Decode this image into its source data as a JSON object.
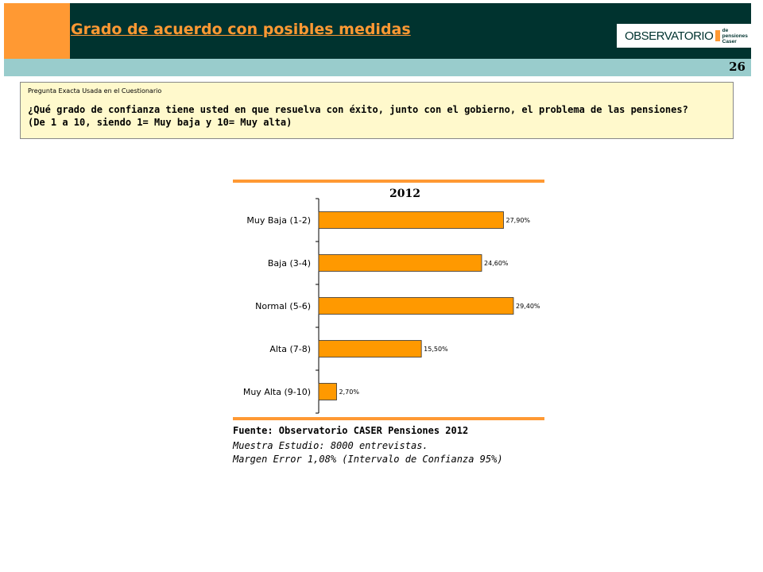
{
  "header": {
    "title": "Grado de acuerdo con posibles medidas",
    "page_number": "26",
    "logo": {
      "main": "OBSERVATORIO",
      "sub1": "de pensiones",
      "sub2": "Caser"
    }
  },
  "question": {
    "caption": "Pregunta Exacta Usada en el Cuestionario",
    "text_line1": "¿Qué grado de confianza tiene usted en que resuelva con éxito, junto con el gobierno, el problema de las pensiones?",
    "text_line2": "(De 1 a 10, siendo 1= Muy baja  y 10= Muy alta)"
  },
  "colors": {
    "header_bg": "#00332f",
    "accent": "#ff9933",
    "subband": "#99cccc",
    "bar": "#ff9900",
    "question_bg": "#fff9cc"
  },
  "chart_data": {
    "type": "bar",
    "orientation": "horizontal",
    "title": "2012",
    "categories": [
      "Muy Baja (1-2)",
      "Baja (3-4)",
      "Normal (5-6)",
      "Alta (7-8)",
      "Muy Alta (9-10)"
    ],
    "values": [
      27.9,
      24.6,
      29.4,
      15.5,
      2.7
    ],
    "labels": [
      "27,90%",
      "24,60%",
      "29,40%",
      "15,50%",
      "2,70%"
    ],
    "xlim": [
      0,
      30
    ],
    "grid": false
  },
  "footer": {
    "source": "Fuente: Observatorio CASER Pensiones 2012",
    "sample": "Muestra Estudio: 8000 entrevistas.",
    "error": "Margen Error 1,08% (Intervalo de Confianza 95%)"
  }
}
